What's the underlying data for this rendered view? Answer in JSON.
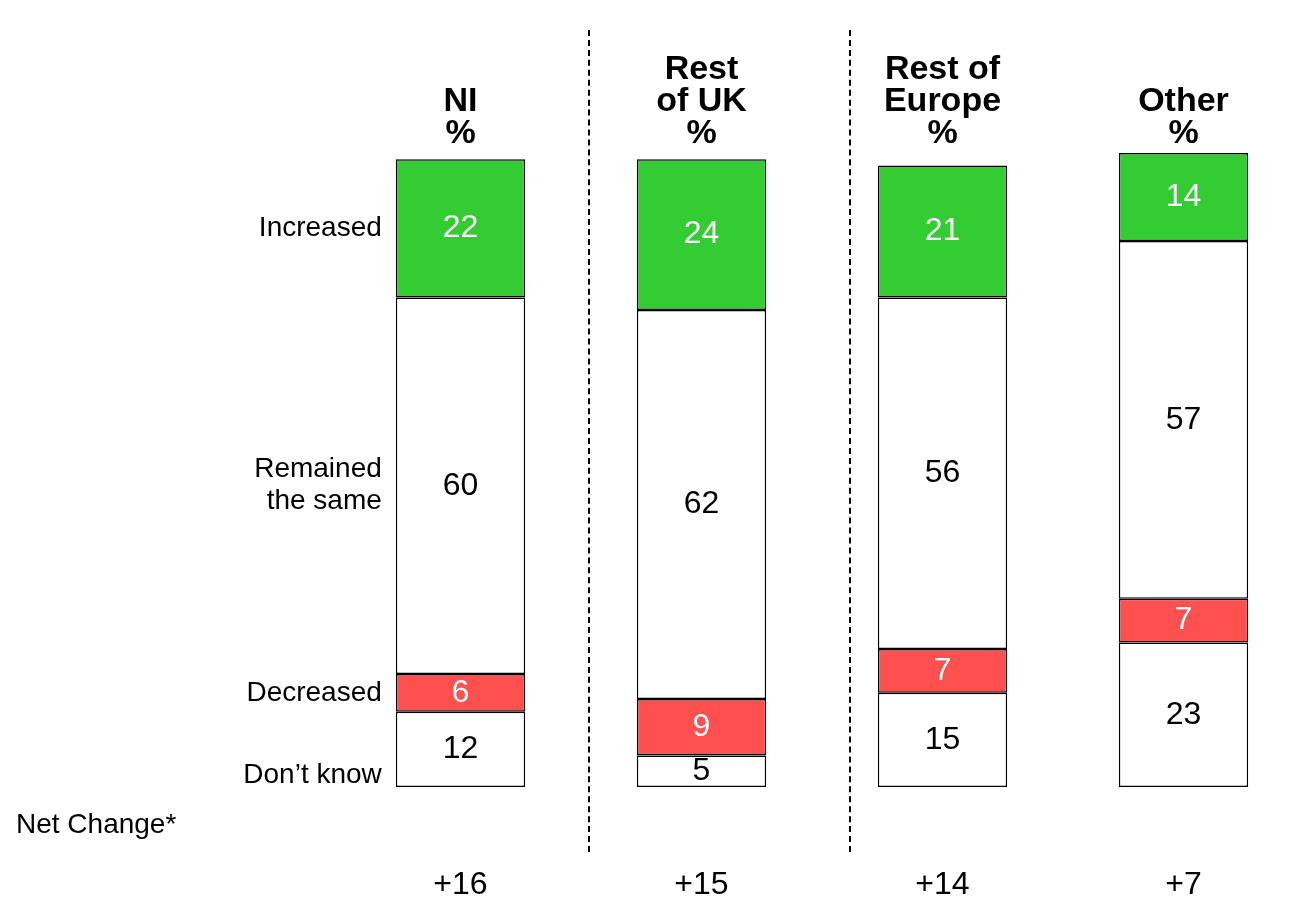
{
  "chart_data": {
    "type": "bar",
    "stacked": true,
    "categories": [
      "NI\n%",
      "Rest\nof UK\n%",
      "Rest of\nEurope\n%",
      "Other\n%"
    ],
    "series": [
      {
        "name": "Don’t know",
        "color": "#ffffff",
        "values": [
          12,
          5,
          15,
          23
        ]
      },
      {
        "name": "Decreased",
        "color": "#ff5050",
        "values": [
          6,
          9,
          7,
          7
        ]
      },
      {
        "name": "Remained\nthe same",
        "color": "#ffffff",
        "values": [
          60,
          62,
          56,
          57
        ]
      },
      {
        "name": "Increased",
        "color": "#33cc33",
        "values": [
          22,
          24,
          21,
          14
        ]
      }
    ],
    "ylim": [
      0,
      101
    ],
    "tick_labels": "x",
    "grid": false,
    "legend": "left",
    "data_labels": true,
    "annotations": [
      "Net Change*",
      "+16",
      "+15",
      "+14",
      "+7"
    ]
  }
}
